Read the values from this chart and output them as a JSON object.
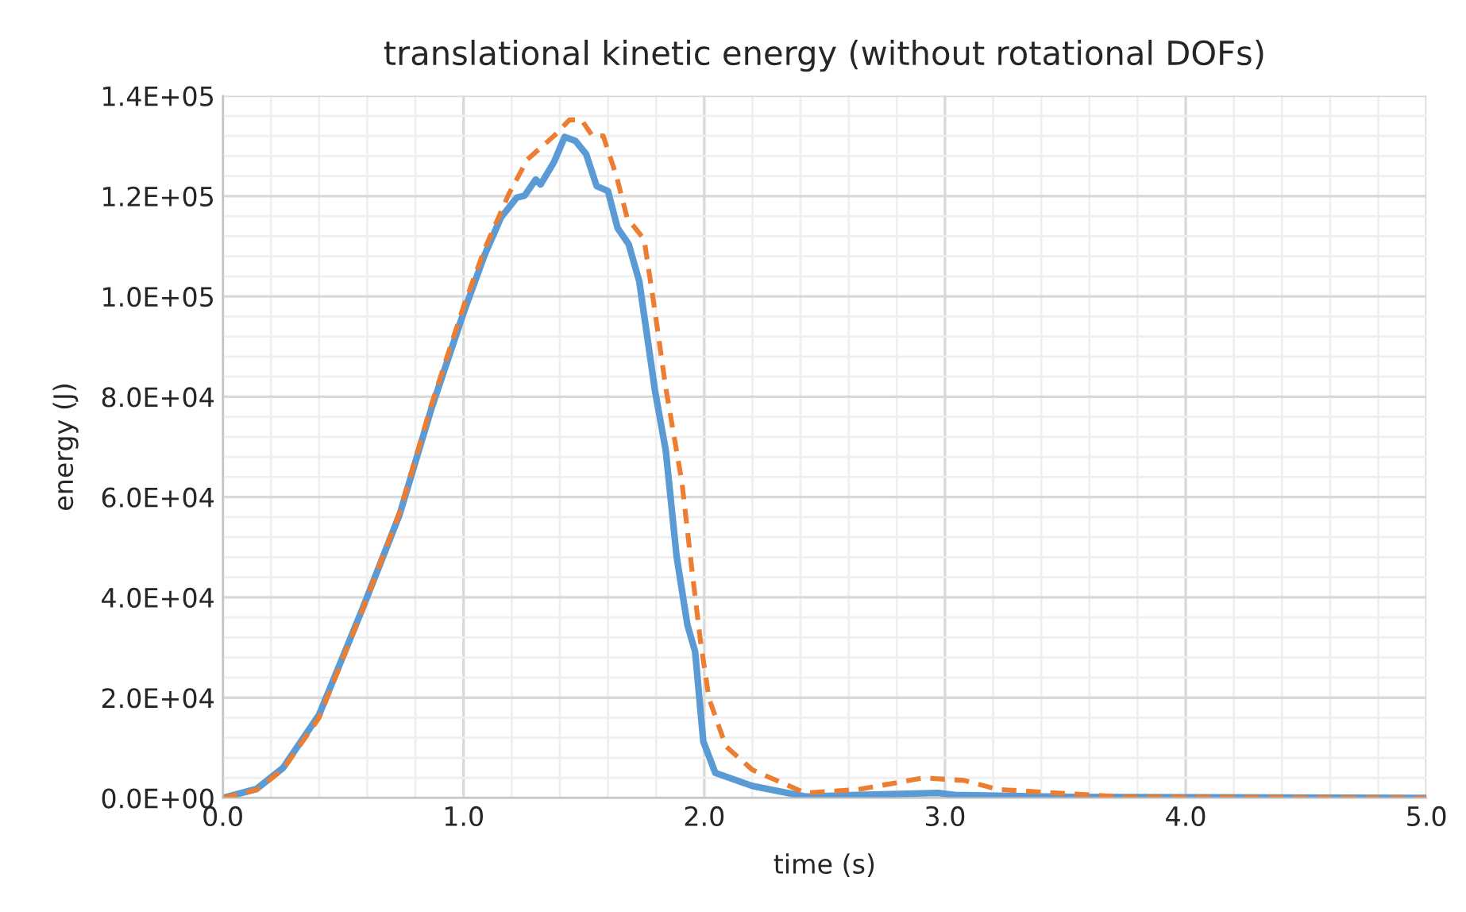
{
  "chart_data": {
    "type": "line",
    "title": "translational kinetic energy (without rotational DOFs)",
    "xlabel": "time (s)",
    "ylabel": "energy (J)",
    "xlim": [
      0,
      5
    ],
    "ylim": [
      0,
      140000
    ],
    "xticks": [
      {
        "value": 0,
        "label": "0.0"
      },
      {
        "value": 1,
        "label": "1.0"
      },
      {
        "value": 2,
        "label": "2.0"
      },
      {
        "value": 3,
        "label": "3.0"
      },
      {
        "value": 4,
        "label": "4.0"
      },
      {
        "value": 5,
        "label": "5.0"
      }
    ],
    "yticks": [
      {
        "value": 0,
        "label": "0.0E+00"
      },
      {
        "value": 20000,
        "label": "2.0E+04"
      },
      {
        "value": 40000,
        "label": "4.0E+04"
      },
      {
        "value": 60000,
        "label": "6.0E+04"
      },
      {
        "value": 80000,
        "label": "8.0E+04"
      },
      {
        "value": 100000,
        "label": "1.0E+05"
      },
      {
        "value": 120000,
        "label": "1.2E+05"
      },
      {
        "value": 140000,
        "label": "1.4E+05"
      }
    ],
    "grid": true,
    "marker": "none",
    "series": [
      {
        "color": "#5b9bd5",
        "line_style": "solid",
        "x": [
          0,
          0.14,
          0.25,
          0.4,
          0.58,
          0.735,
          0.867,
          1.0,
          1.088,
          1.155,
          1.221,
          1.254,
          1.3,
          1.32,
          1.376,
          1.42,
          1.465,
          1.509,
          1.553,
          1.6,
          1.64,
          1.686,
          1.73,
          1.796,
          1.84,
          1.885,
          1.93,
          1.962,
          1.996,
          2.046,
          2.2,
          2.42,
          2.64,
          2.97,
          3.04,
          3.53,
          5.0
        ],
        "values": [
          0,
          1800,
          6000,
          16600,
          37700,
          56600,
          77700,
          96700,
          108300,
          115700,
          119700,
          120100,
          123300,
          122300,
          126800,
          131800,
          131000,
          128400,
          122000,
          121000,
          113600,
          110400,
          103000,
          81000,
          69300,
          48200,
          34500,
          29200,
          11300,
          5000,
          2400,
          300,
          600,
          1000,
          600,
          200,
          0
        ]
      },
      {
        "color": "#ed7d31",
        "line_style": "dashed",
        "x": [
          0,
          0.14,
          0.25,
          0.4,
          0.58,
          0.735,
          0.867,
          1.0,
          1.088,
          1.188,
          1.265,
          1.376,
          1.44,
          1.49,
          1.535,
          1.58,
          1.635,
          1.68,
          1.75,
          1.79,
          1.84,
          1.907,
          1.95,
          1.985,
          2.02,
          2.09,
          2.2,
          2.42,
          2.64,
          2.91,
          3.08,
          3.22,
          3.53,
          3.75,
          5.0
        ],
        "values": [
          0,
          1600,
          5700,
          16000,
          37500,
          57000,
          78500,
          98000,
          109500,
          120400,
          127300,
          132000,
          135200,
          135200,
          132000,
          132000,
          124000,
          115600,
          111400,
          98700,
          81800,
          63000,
          45000,
          31000,
          19800,
          10300,
          5600,
          1000,
          1700,
          4000,
          3500,
          1700,
          800,
          200,
          0
        ]
      }
    ]
  }
}
